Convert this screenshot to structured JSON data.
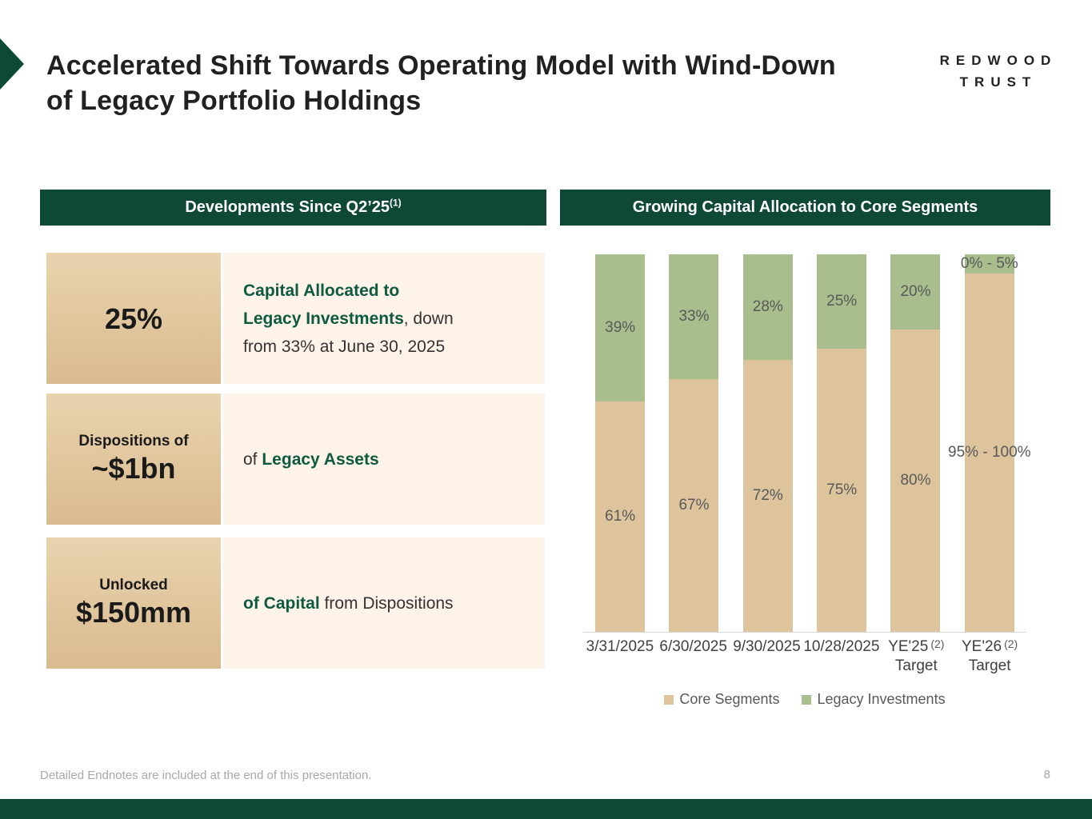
{
  "slide": {
    "title_line1": "Accelerated Shift Towards Operating Model with Wind-Down",
    "title_line2": "of Legacy Portfolio Holdings",
    "logo": {
      "line1": "REDWOOD",
      "line2": "TRUST"
    },
    "footer_note": "Detailed Endnotes are included at the end of this presentation.",
    "page_number": "8"
  },
  "left_panel": {
    "header": "Developments Since Q2’25",
    "header_sup": "(1)",
    "rows": [
      {
        "stat_label": "",
        "stat_value": "25%",
        "desc": {
          "green1": "Capital Allocated to",
          "green2": "Legacy Investments",
          "plain1": ", down",
          "plain2": "from 33% at June 30, 2025"
        }
      },
      {
        "stat_label": "Dispositions of",
        "stat_value": "~$1bn",
        "desc": {
          "plain1": "of ",
          "green1": "Legacy Assets"
        }
      },
      {
        "stat_label": "Unlocked",
        "stat_value": "$150mm",
        "desc": {
          "green1": "of Capital",
          "plain1": " from Dispositions"
        }
      }
    ]
  },
  "chart_data": {
    "type": "bar",
    "stacked": true,
    "title": "Growing Capital Allocation to Core Segments",
    "categories": [
      "3/31/2025",
      "6/30/2025",
      "9/30/2025",
      "10/28/2025",
      "YE'25",
      "YE'26"
    ],
    "category_sups": [
      "",
      "",
      "",
      "",
      "(2)",
      "(2)"
    ],
    "category_line2": [
      "",
      "",
      "",
      "",
      "Target",
      "Target"
    ],
    "series": [
      {
        "name": "Core Segments",
        "color": "#ddc49d",
        "values": [
          61,
          67,
          72,
          75,
          80,
          95
        ],
        "labels": [
          "61%",
          "67%",
          "72%",
          "75%",
          "80%",
          "95% - 100%"
        ]
      },
      {
        "name": "Legacy Investments",
        "color": "#a9bd8d",
        "values": [
          39,
          33,
          28,
          25,
          20,
          5
        ],
        "labels": [
          "39%",
          "33%",
          "28%",
          "25%",
          "20%",
          "0% - 5%"
        ]
      }
    ],
    "ylim": [
      0,
      100
    ],
    "unit": "%",
    "gridlines": false,
    "legend_position": "bottom"
  },
  "colors": {
    "brand_green": "#0e4836",
    "accent_text_green": "#0e5a40",
    "stat_box_tan": "#e0c59c",
    "desc_box_cream": "#fdf3e9",
    "core_tan": "#ddc49d",
    "legacy_green": "#a9bd8d",
    "data_label_gray": "#595959"
  }
}
